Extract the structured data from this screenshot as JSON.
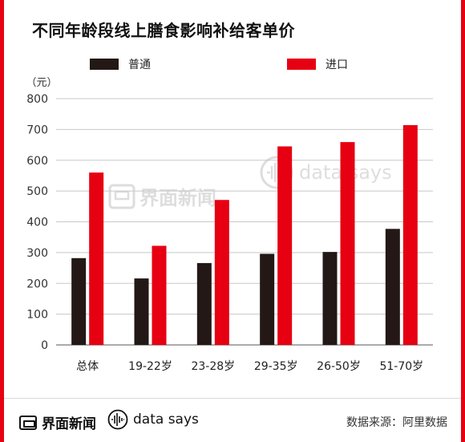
{
  "page": {
    "title": "不同年龄段线上膳食影响补给客单价",
    "accent_color": "#e60012"
  },
  "footer": {
    "brand_left": "界面新闻",
    "brand_right": "data says",
    "source": "数据来源：阿里数据"
  },
  "watermark": {
    "left": "界面新闻",
    "right": "data says"
  },
  "chart_data": {
    "type": "bar",
    "title": "不同年龄段线上膳食影响补给客单价",
    "unit_label": "（元）",
    "categories": [
      "总体",
      "19-22岁",
      "23-28岁",
      "29-35岁",
      "26-50岁",
      "51-70岁"
    ],
    "series": [
      {
        "name": "普通",
        "color": "#231815",
        "values": [
          282,
          216,
          266,
          296,
          302,
          377
        ]
      },
      {
        "name": "进口",
        "color": "#e60012",
        "values": [
          560,
          322,
          471,
          645,
          659,
          714
        ]
      }
    ],
    "ylim": [
      0,
      800
    ],
    "yticks": [
      0,
      100,
      200,
      300,
      400,
      500,
      600,
      700,
      800
    ],
    "grid": true,
    "legend_position": "top"
  }
}
